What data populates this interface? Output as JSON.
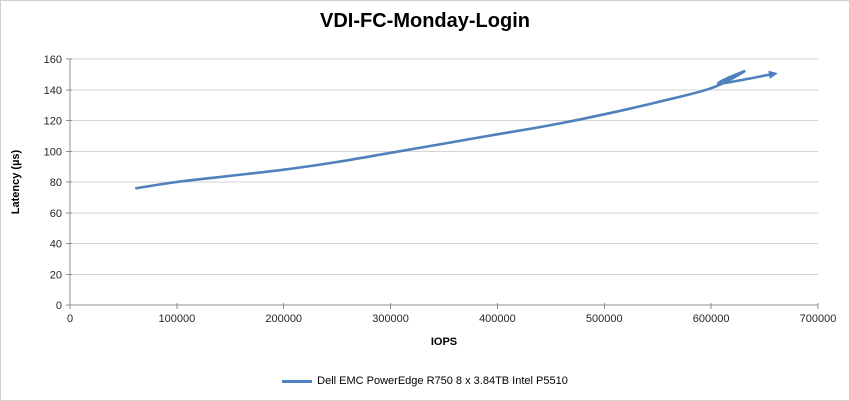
{
  "chart_data": {
    "type": "line",
    "title": "VDI-FC-Monday-Login",
    "xlabel": "IOPS",
    "ylabel": "Latency (µs)",
    "xlim": [
      0,
      700000
    ],
    "ylim": [
      0,
      160
    ],
    "xticks": [
      0,
      100000,
      200000,
      300000,
      400000,
      500000,
      600000,
      700000
    ],
    "yticks": [
      0,
      20,
      40,
      60,
      80,
      100,
      120,
      140,
      160
    ],
    "grid": "horizontal-only",
    "legend_position": "bottom-center",
    "colors": {
      "series": "#4F81BD",
      "gridline": "#D3D3D3",
      "axis": "#8C8C8C",
      "tick_text": "#262626",
      "title_text": "#000000"
    },
    "series": [
      {
        "name": "Dell EMC PowerEdge R750 8 x 3.84TB Intel P5510",
        "color": "#4F81BD",
        "end_arrow": true,
        "points": [
          [
            62000,
            76
          ],
          [
            100000,
            80
          ],
          [
            150000,
            84
          ],
          [
            200000,
            88
          ],
          [
            250000,
            93
          ],
          [
            300000,
            99
          ],
          [
            350000,
            105
          ],
          [
            400000,
            111
          ],
          [
            450000,
            117
          ],
          [
            500000,
            124
          ],
          [
            550000,
            132
          ],
          [
            600000,
            141
          ],
          [
            631000,
            152
          ],
          [
            607000,
            144
          ],
          [
            656000,
            150
          ]
        ]
      }
    ]
  }
}
